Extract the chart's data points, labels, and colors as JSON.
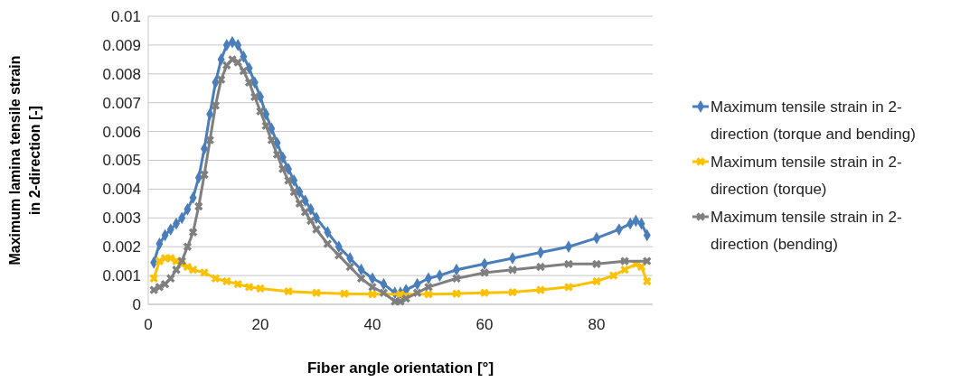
{
  "chart_data": {
    "type": "line",
    "xlabel": "Fiber angle orientation [°]",
    "ylabel": "Maximum lamina tensile strain in 2-direction [-]",
    "xlim": [
      0,
      90
    ],
    "xticks": [
      0,
      20,
      40,
      60,
      80
    ],
    "ylim": [
      0,
      0.01
    ],
    "yticks": [
      0,
      0.001,
      0.002,
      0.003,
      0.004,
      0.005,
      0.006,
      0.007,
      0.008,
      0.009,
      0.01
    ],
    "grid": "y",
    "legend": "right",
    "line_style": "solid",
    "series": [
      {
        "name": "Maximum tensile strain in 2-direction (torque and bending)",
        "color": "#4a7ebb",
        "marker": "diamond",
        "x": [
          1,
          2,
          3,
          4,
          5,
          6,
          7,
          8,
          9,
          10,
          11,
          12,
          13,
          14,
          15,
          16,
          17,
          18,
          19,
          20,
          21,
          22,
          23,
          24,
          25,
          26,
          27,
          28,
          29,
          30,
          32,
          34,
          36,
          38,
          40,
          42,
          44,
          45,
          46,
          48,
          50,
          52,
          55,
          60,
          65,
          70,
          75,
          80,
          84,
          86,
          87,
          88,
          89
        ],
        "values": [
          0.00145,
          0.0021,
          0.0024,
          0.0026,
          0.0028,
          0.003,
          0.0033,
          0.0037,
          0.0044,
          0.0054,
          0.0066,
          0.0077,
          0.0085,
          0.009,
          0.0091,
          0.009,
          0.0086,
          0.0082,
          0.0077,
          0.0072,
          0.0066,
          0.0061,
          0.0056,
          0.0051,
          0.0047,
          0.0043,
          0.0039,
          0.0036,
          0.0033,
          0.003,
          0.0025,
          0.002,
          0.0016,
          0.0012,
          0.0009,
          0.0007,
          0.0004,
          0.0004,
          0.0005,
          0.0007,
          0.0009,
          0.001,
          0.0012,
          0.0014,
          0.0016,
          0.0018,
          0.002,
          0.0023,
          0.0026,
          0.0028,
          0.0029,
          0.0028,
          0.0024
        ]
      },
      {
        "name": "Maximum tensile strain in 2-direction (torque)",
        "color": "#ffc000",
        "marker": "cross",
        "x": [
          1,
          2,
          3,
          4,
          5,
          6,
          7,
          8,
          10,
          12,
          14,
          16,
          18,
          20,
          25,
          30,
          35,
          40,
          45,
          50,
          55,
          60,
          65,
          70,
          75,
          80,
          83,
          85,
          87,
          88,
          89
        ],
        "values": [
          0.0009,
          0.0015,
          0.0016,
          0.0016,
          0.0015,
          0.0014,
          0.0013,
          0.0012,
          0.0011,
          0.0009,
          0.0008,
          0.0007,
          0.0006,
          0.00055,
          0.00045,
          0.0004,
          0.00037,
          0.00035,
          0.00035,
          0.00035,
          0.00037,
          0.0004,
          0.00042,
          0.0005,
          0.0006,
          0.0008,
          0.001,
          0.0012,
          0.0014,
          0.0013,
          0.0008
        ]
      },
      {
        "name": "Maximum tensile strain in 2-direction (bending)",
        "color": "#7f7f7f",
        "marker": "cross",
        "x": [
          1,
          2,
          3,
          4,
          5,
          6,
          7,
          8,
          9,
          10,
          11,
          12,
          13,
          14,
          15,
          16,
          17,
          18,
          19,
          20,
          21,
          22,
          23,
          24,
          25,
          26,
          27,
          28,
          29,
          30,
          32,
          34,
          36,
          38,
          40,
          42,
          44,
          45,
          46,
          48,
          50,
          55,
          60,
          65,
          70,
          75,
          80,
          85,
          89
        ],
        "values": [
          0.0005,
          0.0006,
          0.0007,
          0.0009,
          0.0012,
          0.0015,
          0.002,
          0.0025,
          0.0034,
          0.0045,
          0.0057,
          0.0069,
          0.0078,
          0.0083,
          0.0085,
          0.0084,
          0.0081,
          0.0077,
          0.0072,
          0.0067,
          0.0062,
          0.0057,
          0.0052,
          0.0047,
          0.0043,
          0.0039,
          0.0035,
          0.0032,
          0.0029,
          0.0026,
          0.0021,
          0.0017,
          0.0013,
          0.0009,
          0.0006,
          0.0004,
          0.0001,
          0.0001,
          0.0002,
          0.0004,
          0.0006,
          0.0009,
          0.0011,
          0.0012,
          0.0013,
          0.0014,
          0.0014,
          0.0015,
          0.0015
        ]
      }
    ]
  }
}
